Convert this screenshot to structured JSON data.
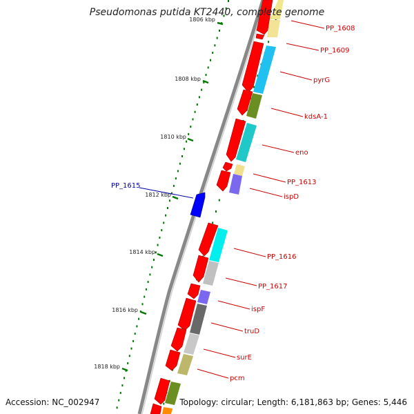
{
  "title": "Pseudomonas putida KT2440, complete genome",
  "footer": {
    "accession": "Accession: NC_002947",
    "topology": "Topology: circular; Length: 6,181,863 bp; Genes: 5,446"
  },
  "kbp_ticks": [
    "1806 kbp",
    "1808 kbp",
    "1810 kbp",
    "1812 kbp",
    "1814 kbp",
    "1816 kbp",
    "1818 kbp"
  ],
  "gene_labels": [
    "PP_1608",
    "PP_1609",
    "pyrG",
    "kdsA-1",
    "eno",
    "PP_1613",
    "ispD",
    "PP_1616",
    "PP_1617",
    "ispF",
    "truD",
    "surE",
    "pcm"
  ],
  "reverse_gene_label": "PP_1615",
  "colors": {
    "forward_cds": "#ff0000",
    "reverse_cds": "#0000ff",
    "backbone": "#888888",
    "tick": "#008000",
    "label_red": "#cc0000",
    "label_blue": "#0000aa"
  }
}
